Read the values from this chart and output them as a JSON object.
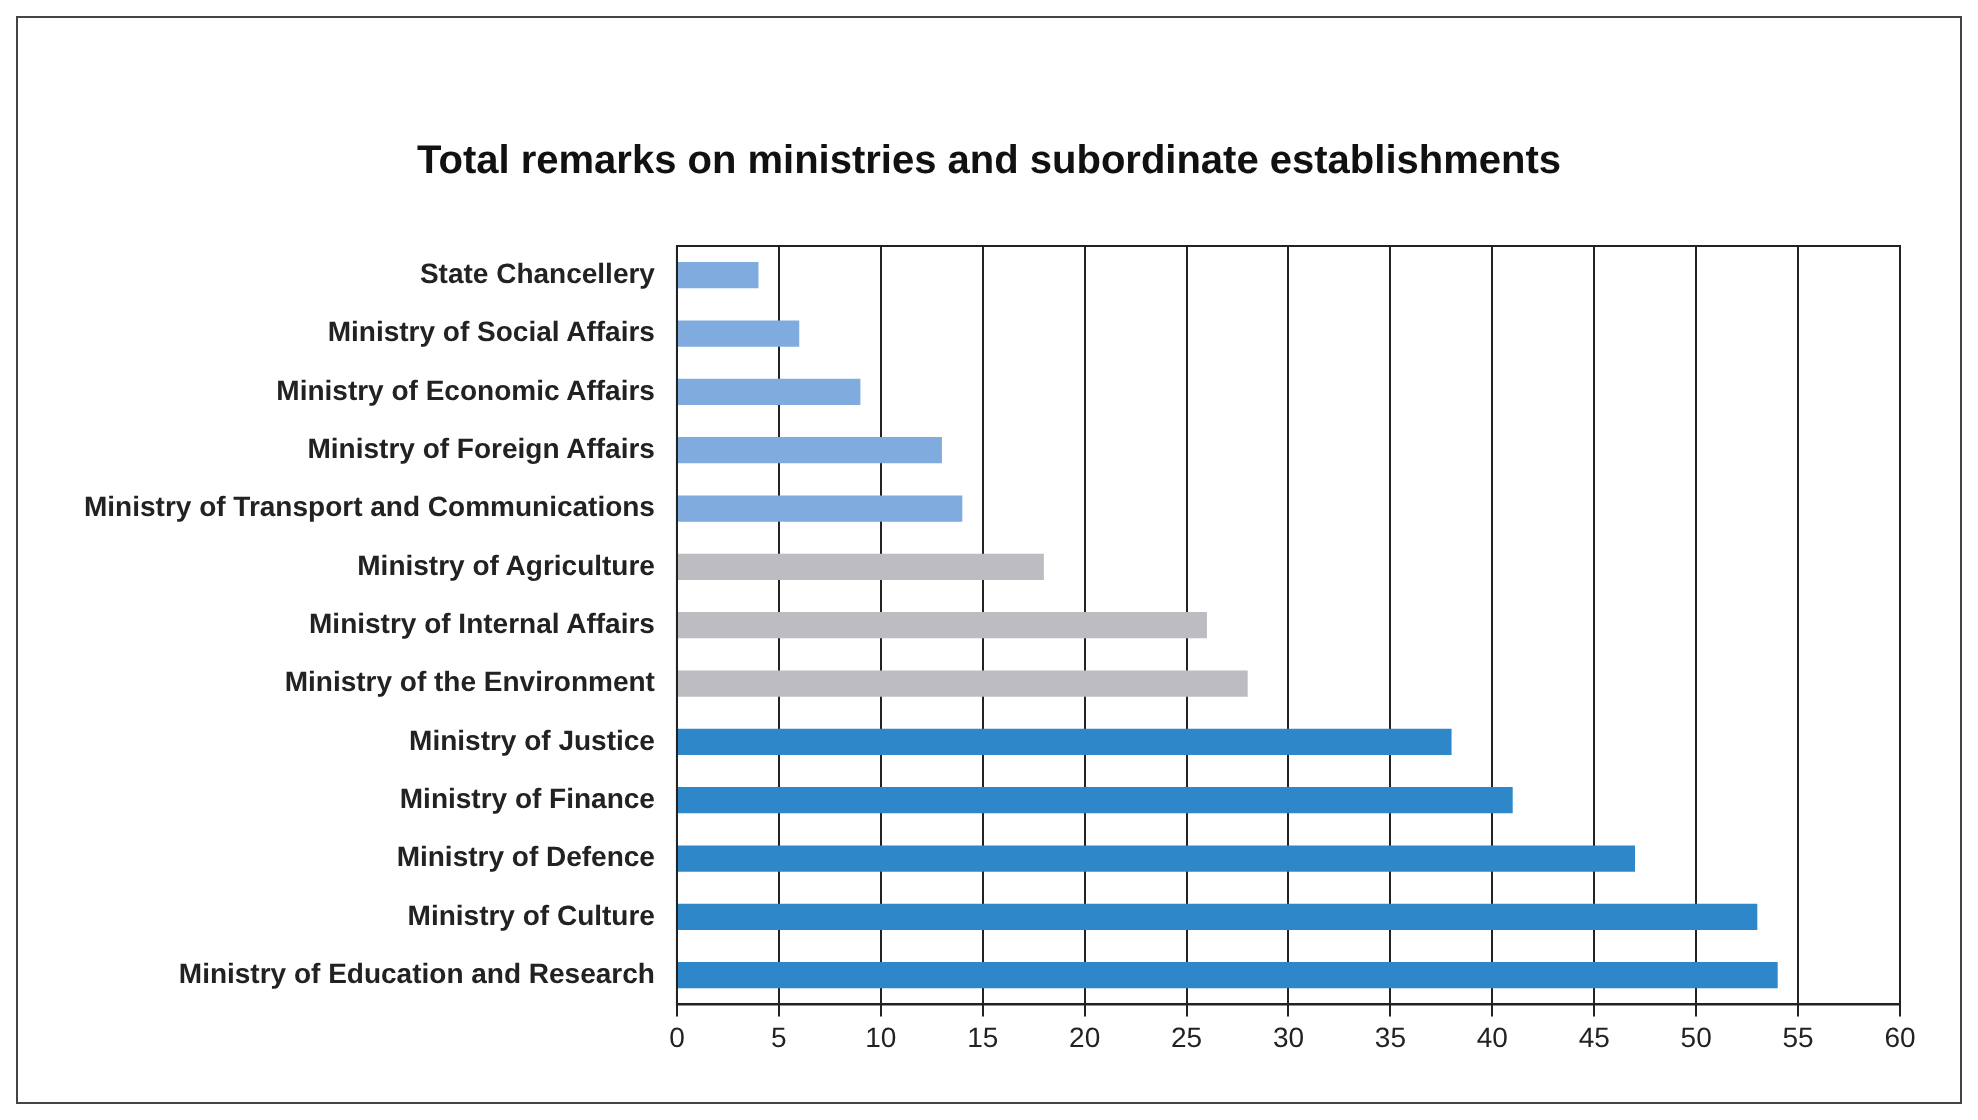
{
  "chart_data": {
    "type": "bar",
    "orientation": "horizontal",
    "title": "Total remarks on ministries and subordinate establishments",
    "categories": [
      "State Chancellery",
      "Ministry of Social Affairs",
      "Ministry of Economic Affairs",
      "Ministry of Foreign Affairs",
      "Ministry of Transport and Communications",
      "Ministry of Agriculture",
      "Ministry of Internal Affairs",
      "Ministry of the Environment",
      "Ministry of Justice",
      "Ministry of Finance",
      "Ministry of Defence",
      "Ministry of Culture",
      "Ministry of Education and Research"
    ],
    "values": [
      4,
      6,
      9,
      13,
      14,
      18,
      26,
      28,
      38,
      41,
      47,
      53,
      54
    ],
    "colors": [
      "#7fabde",
      "#7fabde",
      "#7fabde",
      "#7fabde",
      "#7fabde",
      "#bdbdc1",
      "#bdbdc1",
      "#bdbdc1",
      "#2e87c9",
      "#2e87c9",
      "#2e87c9",
      "#2e87c9",
      "#2e87c9"
    ],
    "xlim": [
      0,
      60
    ],
    "xticks": [
      0,
      5,
      10,
      15,
      20,
      25,
      30,
      35,
      40,
      45,
      50,
      55,
      60
    ],
    "grid": "x"
  }
}
